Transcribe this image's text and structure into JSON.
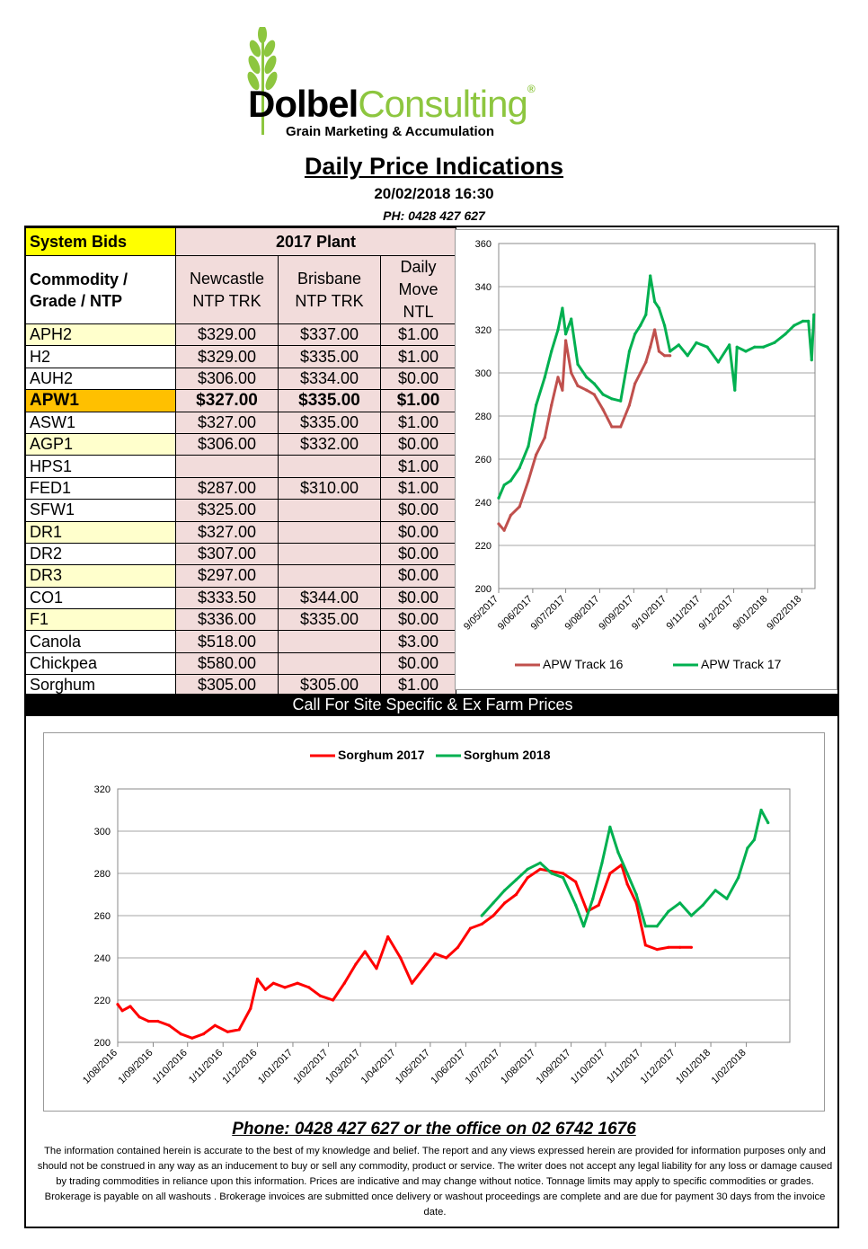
{
  "header": {
    "brand_left": "Dolbel",
    "brand_right": "Consulting",
    "brand_mark": "®",
    "tagline": "Grain Marketing & Accumulation",
    "title": "Daily Price Indications",
    "datetime": "20/02/2018 16:30",
    "phone": "PH: 0428 427 627"
  },
  "table": {
    "system_bids": "System Bids",
    "plant": "2017 Plant",
    "commodity_header": "Commodity / Grade / NTP",
    "col_newcastle": "Newcastle NTP TRK",
    "col_brisbane": "Brisbane NTP TRK",
    "col_daily": "Daily Move NTL",
    "rows": [
      {
        "grade": "APH2",
        "newcastle": "$329.00",
        "brisbane": "$337.00",
        "move": "$1.00",
        "highlight": true
      },
      {
        "grade": "H2",
        "newcastle": "$329.00",
        "brisbane": "$335.00",
        "move": "$1.00",
        "highlight": false
      },
      {
        "grade": "AUH2",
        "newcastle": "$306.00",
        "brisbane": "$334.00",
        "move": "$0.00",
        "highlight": false
      },
      {
        "grade": "APW1",
        "newcastle": "$327.00",
        "brisbane": "$335.00",
        "move": "$1.00",
        "highlight": false,
        "bold": true
      },
      {
        "grade": "ASW1",
        "newcastle": "$327.00",
        "brisbane": "$335.00",
        "move": "$1.00",
        "highlight": false
      },
      {
        "grade": "AGP1",
        "newcastle": "$306.00",
        "brisbane": "$332.00",
        "move": "$0.00",
        "highlight": true
      },
      {
        "grade": "HPS1",
        "newcastle": "",
        "brisbane": "",
        "move": "$1.00",
        "highlight": false
      },
      {
        "grade": "FED1",
        "newcastle": "$287.00",
        "brisbane": "$310.00",
        "move": "$1.00",
        "highlight": false
      },
      {
        "grade": "SFW1",
        "newcastle": "$325.00",
        "brisbane": "",
        "move": "$0.00",
        "highlight": false
      },
      {
        "grade": "DR1",
        "newcastle": "$327.00",
        "brisbane": "",
        "move": "$0.00",
        "highlight": true
      },
      {
        "grade": "DR2",
        "newcastle": "$307.00",
        "brisbane": "",
        "move": "$0.00",
        "highlight": false
      },
      {
        "grade": "DR3",
        "newcastle": "$297.00",
        "brisbane": "",
        "move": "$0.00",
        "highlight": true
      },
      {
        "grade": "CO1",
        "newcastle": "$333.50",
        "brisbane": "$344.00",
        "move": "$0.00",
        "highlight": false
      },
      {
        "grade": "F1",
        "newcastle": "$336.00",
        "brisbane": "$335.00",
        "move": "$0.00",
        "highlight": true
      },
      {
        "grade": "Canola",
        "newcastle": "$518.00",
        "brisbane": "",
        "move": "$3.00",
        "highlight": false
      },
      {
        "grade": "Chickpea",
        "newcastle": "$580.00",
        "brisbane": "",
        "move": "$0.00",
        "highlight": false
      },
      {
        "grade": "Sorghum",
        "newcastle": "$305.00",
        "brisbane": "$305.00",
        "move": "$1.00",
        "highlight": false
      }
    ]
  },
  "call_banner": "Call For Site Specific & Ex Farm Prices",
  "footer": {
    "phone": "Phone: 0428 427 627 or the office on 02 6742 1676",
    "disclaimer": "The information contained herein is accurate to the best of my knowledge and belief.  The report and any views expressed herein are provided for information purposes only and should not be construed in any way as an inducement to buy or sell any commodity, product or service. The writer does not accept any legal liability for any loss or damage caused by trading commodities in reliance upon this information. Prices are indicative and may change without notice. Tonnage limits may apply to specific commodities or grades.  Brokerage is payable on all washouts . Brokerage invoices are submitted once delivery or washout proceedings are complete and are due for payment 30 days from the invoice date."
  },
  "colors": {
    "brand_green": "#8dc63f",
    "series_red_1": "#c0504d",
    "series_green": "#00b050",
    "series_red_2": "#ff0000",
    "system_bids_bg": "#ffff00",
    "apw_bg": "#ffc000",
    "price_cell_bg": "#f2dcdb"
  },
  "chart_data": [
    {
      "type": "line",
      "title": "",
      "ylim": [
        200,
        360
      ],
      "y_ticks": [
        200,
        220,
        240,
        260,
        280,
        300,
        320,
        340,
        360
      ],
      "x_ticks": [
        "9/05/2017",
        "9/06/2017",
        "9/07/2017",
        "9/08/2017",
        "9/09/2017",
        "9/10/2017",
        "9/11/2017",
        "9/12/2017",
        "9/01/2018",
        "9/02/2018"
      ],
      "grid": true,
      "legend": "bottom",
      "series": [
        {
          "name": "APW Track 16",
          "color": "#c0504d",
          "x": [
            "2017-05-09",
            "2017-05-14",
            "2017-05-20",
            "2017-05-28",
            "2017-06-05",
            "2017-06-12",
            "2017-06-20",
            "2017-06-26",
            "2017-07-02",
            "2017-07-06",
            "2017-07-09",
            "2017-07-14",
            "2017-07-20",
            "2017-07-28",
            "2017-08-04",
            "2017-08-12",
            "2017-08-20",
            "2017-08-28",
            "2017-09-05",
            "2017-09-10",
            "2017-09-15",
            "2017-09-20",
            "2017-09-24",
            "2017-09-28",
            "2017-10-02",
            "2017-10-07",
            "2017-10-12"
          ],
          "y": [
            230,
            227,
            234,
            238,
            250,
            262,
            270,
            285,
            298,
            292,
            315,
            300,
            294,
            292,
            290,
            283,
            275,
            275,
            285,
            295,
            300,
            305,
            312,
            320,
            310,
            308,
            308
          ]
        },
        {
          "name": "APW Track 17",
          "color": "#00b050",
          "x": [
            "2017-05-09",
            "2017-05-14",
            "2017-05-20",
            "2017-05-28",
            "2017-06-05",
            "2017-06-12",
            "2017-06-20",
            "2017-06-26",
            "2017-07-02",
            "2017-07-06",
            "2017-07-09",
            "2017-07-14",
            "2017-07-20",
            "2017-07-28",
            "2017-08-04",
            "2017-08-12",
            "2017-08-20",
            "2017-08-28",
            "2017-09-05",
            "2017-09-10",
            "2017-09-15",
            "2017-09-20",
            "2017-09-24",
            "2017-09-28",
            "2017-10-02",
            "2017-10-07",
            "2017-10-12",
            "2017-10-20",
            "2017-10-28",
            "2017-11-05",
            "2017-11-15",
            "2017-11-25",
            "2017-12-05",
            "2017-12-10",
            "2017-12-12",
            "2017-12-20",
            "2017-12-28",
            "2018-01-05",
            "2018-01-15",
            "2018-01-25",
            "2018-02-02",
            "2018-02-10",
            "2018-02-15",
            "2018-02-18",
            "2018-02-20"
          ],
          "y": [
            242,
            248,
            250,
            256,
            266,
            285,
            298,
            310,
            320,
            330,
            318,
            325,
            304,
            298,
            295,
            290,
            288,
            287,
            310,
            318,
            322,
            327,
            345,
            333,
            330,
            322,
            310,
            313,
            308,
            314,
            312,
            305,
            313,
            292,
            312,
            310,
            312,
            312,
            314,
            318,
            322,
            324,
            324,
            306,
            327
          ]
        }
      ]
    },
    {
      "type": "line",
      "title": "",
      "ylim": [
        200,
        320
      ],
      "y_ticks": [
        200,
        220,
        240,
        260,
        280,
        300,
        320
      ],
      "x_ticks": [
        "1/08/2016",
        "1/09/2016",
        "1/10/2016",
        "1/11/2016",
        "1/12/2016",
        "1/01/2017",
        "1/02/2017",
        "1/03/2017",
        "1/04/2017",
        "1/05/2017",
        "1/06/2017",
        "1/07/2017",
        "1/08/2017",
        "1/09/2017",
        "1/10/2017",
        "1/11/2017",
        "1/12/2017",
        "1/01/2018",
        "1/02/2018"
      ],
      "grid": true,
      "legend": "top",
      "series": [
        {
          "name": "Sorghum 2017",
          "color": "#ff0000",
          "x": [
            "2016-08-01",
            "2016-08-05",
            "2016-08-12",
            "2016-08-20",
            "2016-08-28",
            "2016-09-05",
            "2016-09-15",
            "2016-09-25",
            "2016-10-05",
            "2016-10-15",
            "2016-10-25",
            "2016-11-05",
            "2016-11-15",
            "2016-11-25",
            "2016-12-01",
            "2016-12-08",
            "2016-12-15",
            "2016-12-25",
            "2017-01-05",
            "2017-01-15",
            "2017-01-25",
            "2017-02-05",
            "2017-02-15",
            "2017-02-25",
            "2017-03-05",
            "2017-03-15",
            "2017-03-25",
            "2017-04-05",
            "2017-04-15",
            "2017-04-25",
            "2017-05-05",
            "2017-05-15",
            "2017-05-25",
            "2017-06-05",
            "2017-06-15",
            "2017-06-25",
            "2017-07-05",
            "2017-07-15",
            "2017-07-25",
            "2017-08-05",
            "2017-08-15",
            "2017-08-25",
            "2017-09-05",
            "2017-09-15",
            "2017-09-25",
            "2017-10-05",
            "2017-10-15",
            "2017-10-20",
            "2017-10-28",
            "2017-11-05",
            "2017-11-15",
            "2017-11-25",
            "2017-12-05",
            "2017-12-15"
          ],
          "y": [
            218,
            215,
            217,
            212,
            210,
            210,
            208,
            204,
            202,
            204,
            208,
            205,
            206,
            216,
            230,
            225,
            228,
            226,
            228,
            226,
            222,
            220,
            228,
            237,
            243,
            235,
            250,
            240,
            228,
            235,
            242,
            240,
            245,
            254,
            256,
            260,
            266,
            270,
            278,
            282,
            281,
            280,
            276,
            262,
            265,
            280,
            284,
            275,
            266,
            246,
            244,
            245,
            245,
            245
          ]
        },
        {
          "name": "Sorghum 2018",
          "color": "#00b050",
          "x": [
            "2017-06-15",
            "2017-06-25",
            "2017-07-05",
            "2017-07-15",
            "2017-07-25",
            "2017-08-05",
            "2017-08-15",
            "2017-08-25",
            "2017-09-05",
            "2017-09-12",
            "2017-09-20",
            "2017-09-28",
            "2017-10-05",
            "2017-10-12",
            "2017-10-20",
            "2017-10-28",
            "2017-11-05",
            "2017-11-15",
            "2017-11-25",
            "2017-12-05",
            "2017-12-15",
            "2017-12-25",
            "2018-01-05",
            "2018-01-15",
            "2018-01-25",
            "2018-02-02",
            "2018-02-08",
            "2018-02-14",
            "2018-02-20"
          ],
          "y": [
            260,
            266,
            272,
            277,
            282,
            285,
            280,
            278,
            265,
            255,
            268,
            285,
            302,
            290,
            280,
            270,
            255,
            255,
            262,
            266,
            260,
            265,
            272,
            268,
            278,
            292,
            296,
            310,
            304
          ]
        }
      ]
    }
  ]
}
